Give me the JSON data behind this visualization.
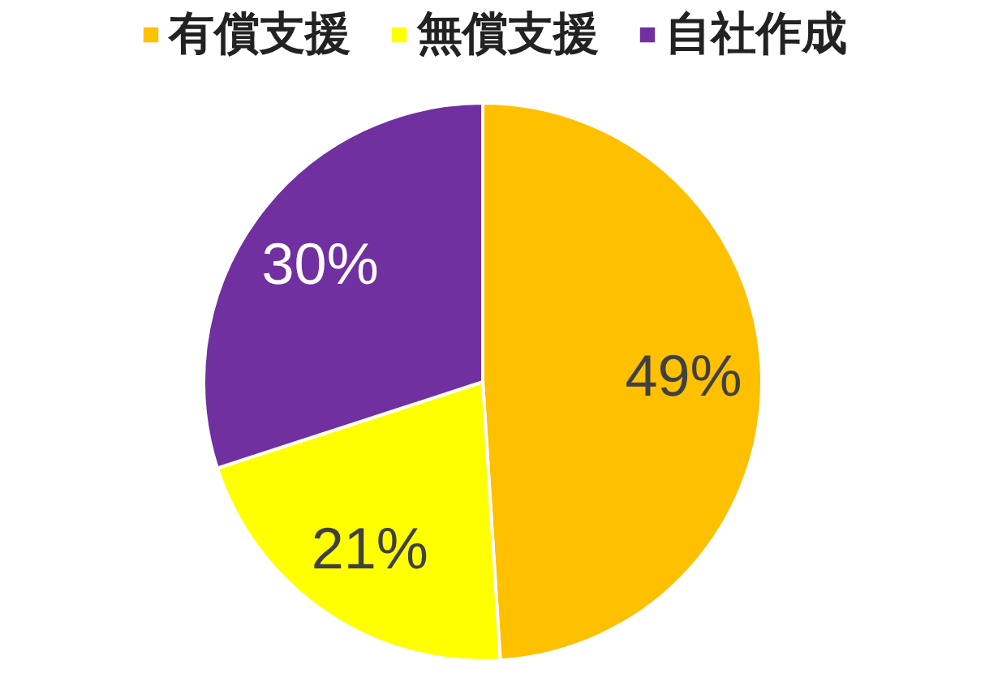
{
  "chart_data": {
    "type": "pie",
    "categories": [
      "有償支援",
      "無償支援",
      "自社作成"
    ],
    "values": [
      49,
      21,
      30
    ],
    "colors": [
      "#ffc000",
      "#ffff00",
      "#7030a0"
    ],
    "value_labels": [
      "49%",
      "21%",
      "30%"
    ],
    "legend": "top"
  }
}
